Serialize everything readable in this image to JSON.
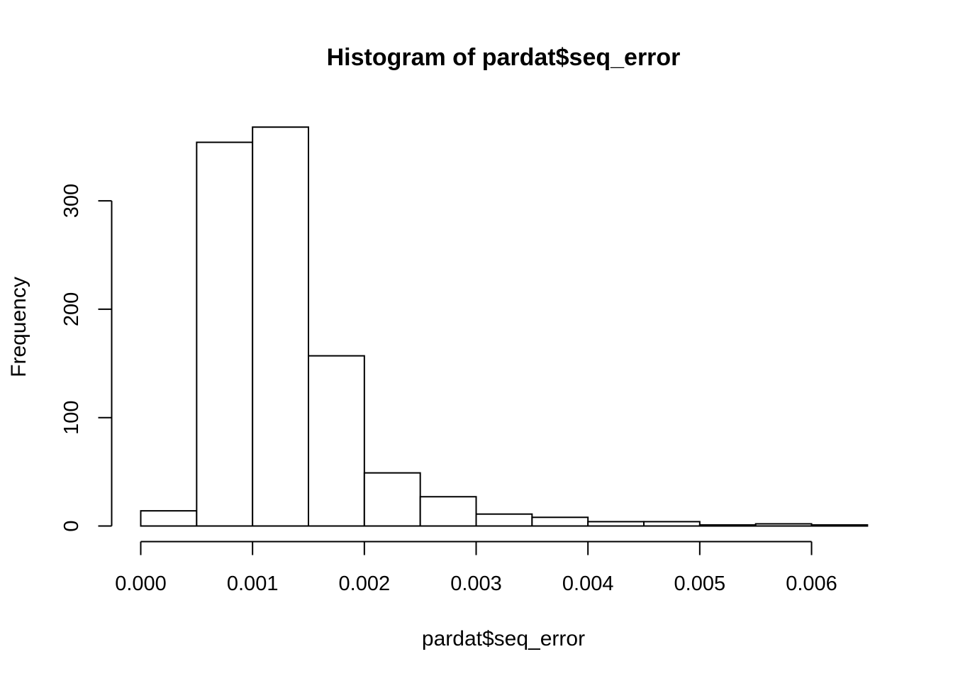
{
  "chart_data": {
    "type": "bar",
    "subtype": "histogram",
    "title": "Histogram of pardat$seq_error",
    "xlabel": "pardat$seq_error",
    "ylabel": "Frequency",
    "bins": [
      {
        "start": 0.0,
        "end": 0.0005,
        "count": 14
      },
      {
        "start": 0.0005,
        "end": 0.001,
        "count": 354
      },
      {
        "start": 0.001,
        "end": 0.0015,
        "count": 368
      },
      {
        "start": 0.0015,
        "end": 0.002,
        "count": 157
      },
      {
        "start": 0.002,
        "end": 0.0025,
        "count": 49
      },
      {
        "start": 0.0025,
        "end": 0.003,
        "count": 27
      },
      {
        "start": 0.003,
        "end": 0.0035,
        "count": 11
      },
      {
        "start": 0.0035,
        "end": 0.004,
        "count": 8
      },
      {
        "start": 0.004,
        "end": 0.0045,
        "count": 4
      },
      {
        "start": 0.0045,
        "end": 0.005,
        "count": 4
      },
      {
        "start": 0.005,
        "end": 0.0055,
        "count": 1
      },
      {
        "start": 0.0055,
        "end": 0.006,
        "count": 2
      },
      {
        "start": 0.006,
        "end": 0.0065,
        "count": 1
      }
    ],
    "xticks": [
      0.0,
      0.001,
      0.002,
      0.003,
      0.004,
      0.005,
      0.006
    ],
    "xtick_labels": [
      "0.000",
      "0.001",
      "0.002",
      "0.003",
      "0.004",
      "0.005",
      "0.006"
    ],
    "yticks": [
      0,
      100,
      200,
      300
    ],
    "ytick_labels": [
      "0",
      "100",
      "200",
      "300"
    ],
    "xlim": [
      0.0,
      0.0065
    ],
    "ylim": [
      0,
      368
    ],
    "grid": false,
    "legend": "none",
    "bar_fill": "#ffffff",
    "bar_stroke": "#000000"
  }
}
